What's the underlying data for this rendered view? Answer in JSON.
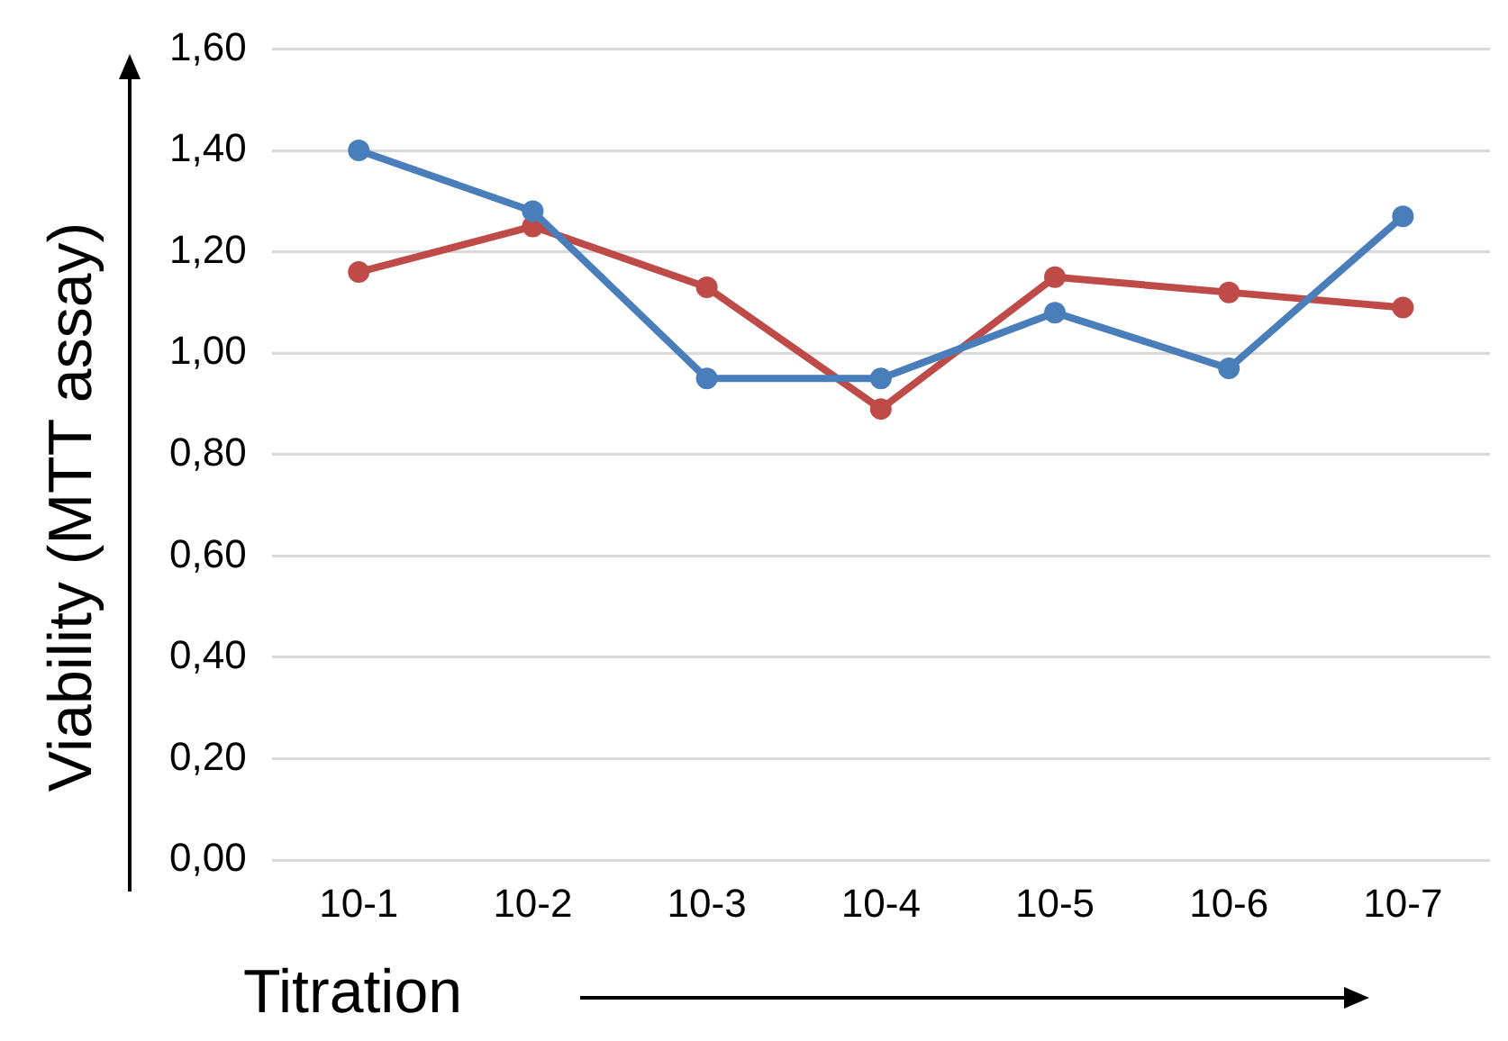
{
  "chart_data": {
    "type": "line",
    "xlabel": "Titration",
    "ylabel": "Viability (MTT assay)",
    "categories": [
      "10-1",
      "10-2",
      "10-3",
      "10-4",
      "10-5",
      "10-6",
      "10-7"
    ],
    "series": [
      {
        "color": "#4a7ebb",
        "values": [
          1.4,
          1.28,
          0.95,
          0.95,
          1.08,
          0.97,
          1.27
        ]
      },
      {
        "color": "#be4b48",
        "values": [
          1.16,
          1.25,
          1.13,
          0.89,
          1.15,
          1.12,
          1.09
        ]
      }
    ],
    "ylim": [
      0,
      1.6
    ],
    "yticks": [
      {
        "value": 0,
        "label": "0,00"
      },
      {
        "value": 0.2,
        "label": "0,20"
      },
      {
        "value": 0.4,
        "label": "0,40"
      },
      {
        "value": 0.6,
        "label": "0,60"
      },
      {
        "value": 0.8,
        "label": "0,80"
      },
      {
        "value": 1.0,
        "label": "1,00"
      },
      {
        "value": 1.2,
        "label": "1,20"
      },
      {
        "value": 1.4,
        "label": "1,40"
      },
      {
        "value": 1.6,
        "label": "1,60"
      }
    ],
    "grid": "y",
    "legend": false,
    "marker": "circle",
    "line_style": "solid"
  }
}
